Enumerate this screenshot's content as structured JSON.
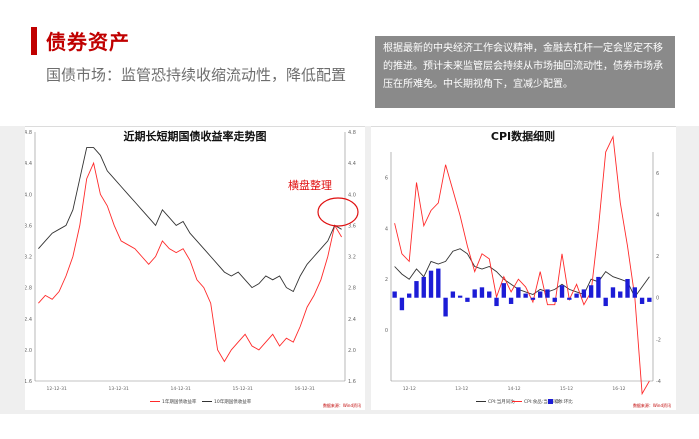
{
  "header": {
    "title": "债券资产",
    "subtitle": "国债市场：监管恐持续收缩流动性，降低配置"
  },
  "note": {
    "text": "根据最新的中央经济工作会议精神，金融去杠杆一定会坚定不移的推进。预计未来监管层会持续从市场抽回流动性，债券市场承压在所难免。中长期视角下，宜减少配置。"
  },
  "colors": {
    "accent": "#c00000",
    "red_line": "#ff2a2a",
    "black_line": "#333333",
    "bar": "#1c1cd6"
  },
  "chart_data": [
    {
      "type": "line",
      "title": "近期长短期国债收益率走势图",
      "annotation": "横盘整理",
      "xlabel": "",
      "ylabel": "",
      "x_ticks": [
        "12-12-31",
        "13-12-31",
        "14-12-31",
        "15-12-31",
        "16-12-31"
      ],
      "y_left_ticks": [
        "1.6",
        "2.0",
        "2.4",
        "2.8",
        "3.2",
        "3.6",
        "4.0",
        "4.4",
        "4.8"
      ],
      "y_right_ticks": [
        "1.6",
        "2.0",
        "2.4",
        "2.8",
        "3.2",
        "3.6",
        "4.0",
        "4.4",
        "4.8"
      ],
      "ylim_left": [
        1.6,
        4.8
      ],
      "ylim_right": [
        1.6,
        4.8
      ],
      "legend_placement": "bottom",
      "series": [
        {
          "name": "1年期国债收益率",
          "axis": "left",
          "color": "#ff2a2a",
          "values": [
            2.6,
            2.7,
            2.65,
            2.75,
            2.95,
            3.2,
            3.6,
            4.2,
            4.4,
            4.0,
            3.85,
            3.6,
            3.4,
            3.35,
            3.3,
            3.2,
            3.1,
            3.2,
            3.4,
            3.3,
            3.25,
            3.3,
            3.15,
            2.9,
            2.8,
            2.6,
            2.0,
            1.85,
            2.0,
            2.1,
            2.2,
            2.05,
            2.0,
            2.1,
            2.2,
            2.05,
            2.15,
            2.1,
            2.3,
            2.55,
            2.7,
            2.9,
            3.2,
            3.6,
            3.45
          ]
        },
        {
          "name": "10年期国债收益率",
          "axis": "right",
          "color": "#333333",
          "values": [
            3.3,
            3.4,
            3.5,
            3.55,
            3.6,
            3.8,
            4.2,
            4.6,
            4.6,
            4.5,
            4.3,
            4.2,
            4.1,
            4.0,
            3.9,
            3.8,
            3.7,
            3.6,
            3.8,
            3.7,
            3.6,
            3.65,
            3.5,
            3.4,
            3.3,
            3.2,
            3.1,
            3.0,
            2.95,
            3.0,
            2.9,
            2.8,
            2.85,
            2.95,
            2.9,
            2.95,
            2.8,
            2.75,
            2.95,
            3.1,
            3.2,
            3.3,
            3.4,
            3.6,
            3.55
          ]
        }
      ],
      "source": "数据来源：Wind资讯"
    },
    {
      "type": "bar",
      "title": "CPI数据细则",
      "xlabel": "",
      "ylabel": "",
      "x_ticks": [
        "12-12",
        "13-12",
        "14-12",
        "15-12",
        "16-12"
      ],
      "y_left_ticks": [
        "0",
        "2",
        "4",
        "6"
      ],
      "y_right_ticks": [
        "-4",
        "-2",
        "0",
        "2",
        "4",
        "6"
      ],
      "ylim_left": [
        -2,
        7
      ],
      "ylim_right": [
        -4,
        7
      ],
      "legend_placement": "bottom",
      "series": [
        {
          "name": "CPI:当月同比",
          "kind": "line",
          "axis": "left",
          "color": "#333333",
          "values": [
            2.5,
            2.2,
            2.0,
            2.4,
            2.1,
            2.7,
            2.6,
            2.7,
            3.1,
            3.2,
            3.0,
            2.5,
            2.4,
            2.5,
            2.3,
            2.0,
            1.8,
            1.6,
            1.5,
            1.4,
            1.6,
            1.5,
            1.6,
            1.8,
            1.6,
            1.5,
            1.4,
            2.0,
            1.9,
            2.3,
            2.1,
            2.0,
            1.9,
            1.3,
            1.7,
            2.1
          ]
        },
        {
          "name": "CPI:食品:当月同比",
          "kind": "line",
          "axis": "left",
          "color": "#ff2a2a",
          "values": [
            4.2,
            3.0,
            2.7,
            5.8,
            4.1,
            4.7,
            5.0,
            6.5,
            5.5,
            4.5,
            3.3,
            2.3,
            3.0,
            2.8,
            1.3,
            2.1,
            1.5,
            2.0,
            1.7,
            1.1,
            2.3,
            1.0,
            1.0,
            3.0,
            1.2,
            1.8,
            1.0,
            1.5,
            4.0,
            7.0,
            7.6,
            5.0,
            3.3,
            1.3,
            -2.5,
            -2.0
          ]
        },
        {
          "name": "CPI:环比",
          "kind": "bar",
          "axis": "right",
          "color": "#1c1cd6",
          "values": [
            0.3,
            -0.6,
            0.2,
            0.8,
            1.0,
            1.3,
            1.4,
            -0.9,
            0.3,
            0.1,
            -0.2,
            0.4,
            0.5,
            0.3,
            -0.4,
            0.7,
            -0.3,
            0.5,
            0.2,
            -0.1,
            0.3,
            0.4,
            -0.2,
            0.6,
            -0.1,
            0.2,
            0.4,
            0.6,
            1.0,
            -0.4,
            0.5,
            0.3,
            0.9,
            0.5,
            -0.3,
            -0.2
          ]
        }
      ],
      "source": "数据来源：Wind资讯"
    }
  ]
}
